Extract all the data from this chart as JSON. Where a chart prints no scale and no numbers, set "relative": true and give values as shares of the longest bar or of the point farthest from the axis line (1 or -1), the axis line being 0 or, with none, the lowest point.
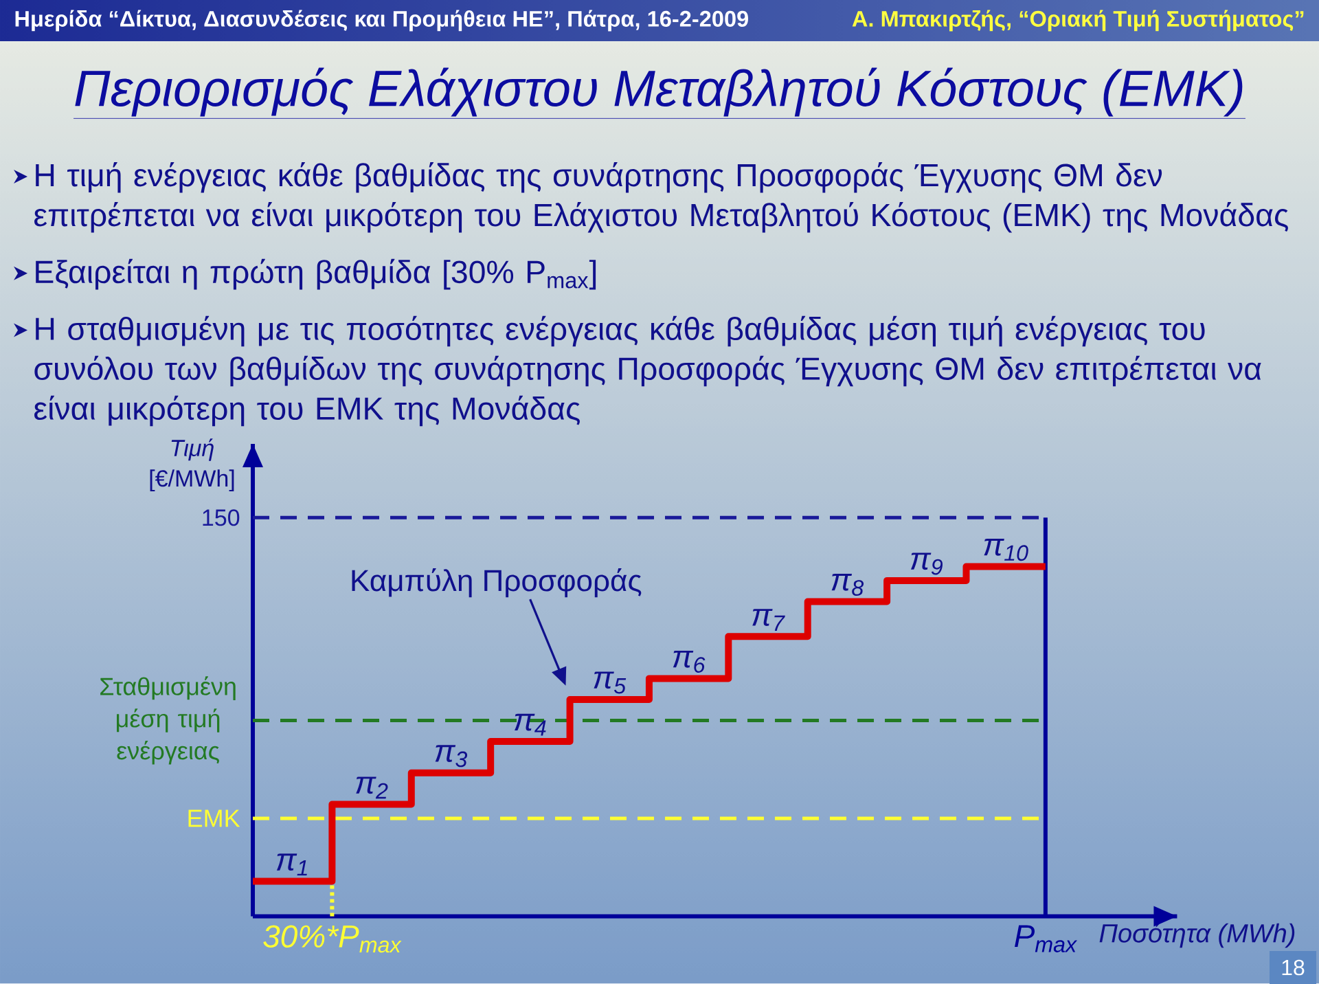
{
  "chart_data": {
    "type": "step",
    "title": "Περιορισμός Ελάχιστου Μεταβλητού Κόστους (ΕΜΚ)",
    "annotations": [
      "Ημερίδα “Δίκτυα, Διασυνδέσεις και Προμήθεια ΗΕ”, Πάτρα, 16-2-2009",
      "Α. Μπακιρτζής, “Οριακή Τιμή Συστήματος”",
      "Η τιμή ενέργειας κάθε βαθμίδας της συνάρτησης Προσφοράς Έγχυσης ΘΜ δεν επιτρέπεται να είναι μικρότερη του Ελάχιστου Μεταβλητού Κόστους (ΕΜΚ) της Μονάδας",
      "Εξαιρείται η πρώτη βαθμίδα [30% P$_{max}$]",
      "Η σταθμισμένη με τις ποσότητες ενέργειας κάθε βαθμίδας μέση τιμή ενέργειας του συνόλου των βαθμίδων της συνάρτησης Προσφοράς Έγχυσης ΘΜ δεν επιτρέπεται να είναι μικρότερη του ΕΜΚ της Μονάδας",
      "150",
      "18",
      {
        "text": "π$_{1}$",
        "y": 0.1
      },
      {
        "text": "π$_{2}$",
        "y": 0.32
      },
      {
        "text": "π$_{3}$",
        "y": 0.41
      },
      {
        "text": "π$_{4}$",
        "y": 0.5
      },
      {
        "text": "π$_{5}$",
        "y": 0.62
      },
      {
        "text": "π$_{6}$",
        "y": 0.68
      },
      {
        "text": "π$_{7}$",
        "y": 0.8
      },
      {
        "text": "π$_{8}$",
        "y": 0.9
      },
      {
        "text": "π$_{9}$",
        "y": 0.96
      },
      {
        "text": "π$_{10}$",
        "y": 1
      }
    ],
    "xlabel": "Ποσότητα (MWh)",
    "ylabel": "*Τιμή* [€/MWh]",
    "relative": true,
    "categories": [
      null,
      "30%*P$_{max}$",
      null,
      null,
      null,
      null,
      null,
      null,
      null,
      null,
      "P$_{max}$"
    ],
    "series": [
      {
        "name": "Καμπύλη Προσφοράς",
        "color": "#dd0000",
        "values": [
          0.1,
          0.32,
          0.41,
          0.5,
          0.62,
          0.68,
          0.8,
          0.9,
          0.96,
          1,
          1
        ]
      }
    ],
    "ref_lines": [
      {
        "axis": "y",
        "value": 1.14,
        "color": "#1a1a99",
        "line_style": "dashed"
      },
      {
        "axis": "y",
        "value": 0.56,
        "label": "Σταθμισμένη μέση τιμή ενέργειας",
        "color": "#237a23",
        "line_style": "dashed"
      },
      {
        "axis": "y",
        "value": 0.28,
        "label": "ΕΜΚ",
        "color": "#ffff33",
        "line_style": "dashed"
      },
      {
        "axis": "x",
        "value": "30%*P$_{max}$",
        "color": "#ffff33",
        "line_style": "dotted"
      },
      {
        "axis": "x",
        "value": "P$_{max}$",
        "color": "#000099",
        "line_style": "solid"
      }
    ]
  }
}
